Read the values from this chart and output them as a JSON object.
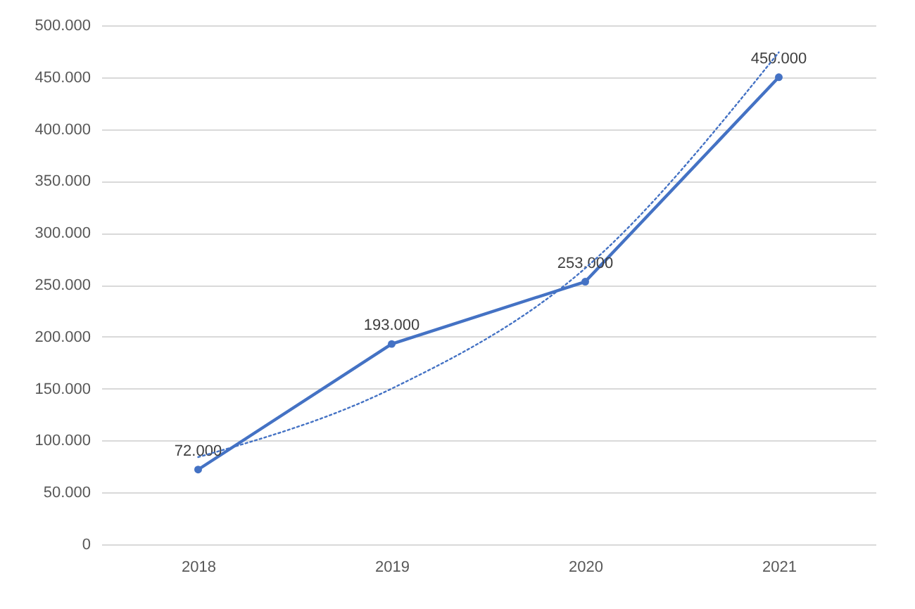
{
  "chart_data": {
    "type": "line",
    "categories": [
      "2018",
      "2019",
      "2020",
      "2021"
    ],
    "series": [
      {
        "color": "#4472c4",
        "values": [
          72000,
          193000,
          253000,
          450000
        ],
        "value_labels": [
          "72.000",
          "193.000",
          "253.000",
          "450.000"
        ],
        "marker": "circle",
        "line_style": "solid"
      },
      {
        "color": "#4472c4",
        "values": [
          84000,
          150000,
          266000,
          474000
        ],
        "marker": "none",
        "line_style": "dotted"
      }
    ],
    "ylim": [
      0,
      500000
    ],
    "yticks": [
      {
        "value": 0,
        "label": "0"
      },
      {
        "value": 50000,
        "label": "50.000"
      },
      {
        "value": 100000,
        "label": "100.000"
      },
      {
        "value": 150000,
        "label": "150.000"
      },
      {
        "value": 200000,
        "label": "200.000"
      },
      {
        "value": 250000,
        "label": "250.000"
      },
      {
        "value": 300000,
        "label": "300.000"
      },
      {
        "value": 350000,
        "label": "350.000"
      },
      {
        "value": 400000,
        "label": "400.000"
      },
      {
        "value": 450000,
        "label": "450.000"
      },
      {
        "value": 500000,
        "label": "500.000"
      }
    ],
    "grid": "y",
    "legend": false
  }
}
